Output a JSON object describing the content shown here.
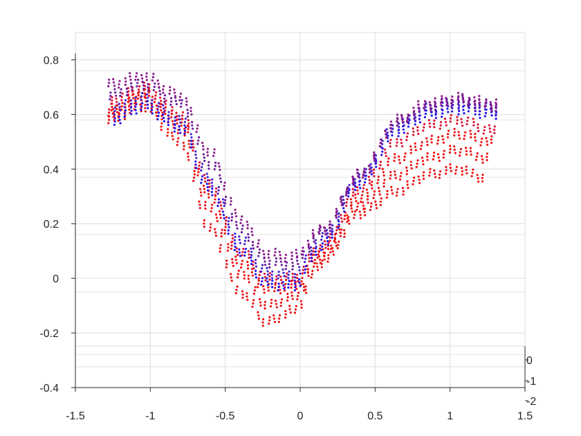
{
  "chart_data": {
    "type": "scatter",
    "title": "",
    "xlabel": "",
    "ylabel": "",
    "xlim": [
      -1.5,
      1.5
    ],
    "ylim": [
      -0.4,
      0.9
    ],
    "zlim": [
      -2,
      0
    ],
    "x_ticks": [
      "-1.5",
      "-1",
      "-0.5",
      "0",
      "0.5",
      "1",
      "1.5"
    ],
    "y_ticks": [
      "-0.4",
      "-0.2",
      "0",
      "0.2",
      "0.4",
      "0.6",
      "0.8"
    ],
    "z_ticks": [
      "0",
      "-1",
      "-2"
    ],
    "grid": true,
    "legend": "none",
    "colors": {
      "low": "#ee1111",
      "mid": "#8a1a8a",
      "high": "#2211ee"
    },
    "x_range": [
      -1.28,
      1.31
    ],
    "series": [
      {
        "color": "#ee1111",
        "anchor_x": [
          -1.28,
          -1.05,
          -0.8,
          -0.6,
          -0.4,
          -0.22,
          -0.05,
          0.15,
          0.4,
          0.65,
          0.85,
          1.05,
          1.22
        ],
        "anchor_y": [
          0.58,
          0.63,
          0.5,
          0.18,
          -0.05,
          -0.16,
          -0.12,
          0.06,
          0.24,
          0.32,
          0.38,
          0.4,
          0.37
        ]
      },
      {
        "color": "#ee1111",
        "anchor_x": [
          -1.28,
          -1.05,
          -0.8,
          -0.6,
          -0.4,
          -0.22,
          -0.05,
          0.15,
          0.4,
          0.65,
          0.85,
          1.05,
          1.25
        ],
        "anchor_y": [
          0.6,
          0.66,
          0.55,
          0.25,
          0.02,
          -0.1,
          -0.07,
          0.08,
          0.27,
          0.38,
          0.44,
          0.47,
          0.44
        ]
      },
      {
        "color": "#ee1111",
        "anchor_x": [
          -1.26,
          -1.05,
          -0.8,
          -0.6,
          -0.4,
          -0.22,
          -0.05,
          0.15,
          0.4,
          0.65,
          0.85,
          1.05,
          1.28
        ],
        "anchor_y": [
          0.62,
          0.68,
          0.58,
          0.3,
          0.06,
          -0.04,
          -0.03,
          0.1,
          0.3,
          0.44,
          0.5,
          0.53,
          0.5
        ]
      },
      {
        "color": "#dd1133",
        "anchor_x": [
          -1.26,
          -1.05,
          -0.8,
          -0.6,
          -0.4,
          -0.22,
          -0.05,
          0.15,
          0.4,
          0.65,
          0.85,
          1.05,
          1.3
        ],
        "anchor_y": [
          0.65,
          0.7,
          0.6,
          0.34,
          0.1,
          0.0,
          0.0,
          0.12,
          0.33,
          0.5,
          0.56,
          0.58,
          0.54
        ]
      },
      {
        "color": "#2211ee",
        "anchor_x": [
          -1.24,
          -1.05,
          -0.8,
          -0.6,
          -0.4,
          -0.22,
          -0.05,
          0.15,
          0.4,
          0.65,
          0.85,
          1.05,
          1.31
        ],
        "anchor_y": [
          0.58,
          0.63,
          0.55,
          0.32,
          0.1,
          -0.02,
          -0.03,
          0.12,
          0.35,
          0.54,
          0.6,
          0.62,
          0.6
        ]
      },
      {
        "color": "#4422cc",
        "anchor_x": [
          -1.24,
          -1.05,
          -0.8,
          -0.6,
          -0.4,
          -0.22,
          -0.05,
          0.15,
          0.4,
          0.65,
          0.85,
          1.05,
          1.31
        ],
        "anchor_y": [
          0.62,
          0.66,
          0.58,
          0.36,
          0.14,
          0.02,
          0.01,
          0.15,
          0.37,
          0.56,
          0.62,
          0.64,
          0.62
        ]
      },
      {
        "color": "#6a1a9a",
        "anchor_x": [
          -1.27,
          -1.05,
          -0.8,
          -0.6,
          -0.4,
          -0.22,
          -0.05,
          0.15,
          0.4,
          0.65,
          0.85,
          1.05,
          1.31
        ],
        "anchor_y": [
          0.67,
          0.71,
          0.64,
          0.42,
          0.18,
          0.06,
          0.05,
          0.17,
          0.38,
          0.57,
          0.63,
          0.65,
          0.63
        ]
      },
      {
        "color": "#8a1a8a",
        "anchor_x": [
          -1.28,
          -1.05,
          -0.8,
          -0.6,
          -0.4,
          -0.22,
          -0.05,
          0.15,
          0.4,
          0.65,
          0.85,
          1.05,
          1.31
        ],
        "anchor_y": [
          0.71,
          0.74,
          0.67,
          0.46,
          0.22,
          0.09,
          0.08,
          0.18,
          0.38,
          0.58,
          0.64,
          0.66,
          0.64
        ]
      }
    ]
  }
}
